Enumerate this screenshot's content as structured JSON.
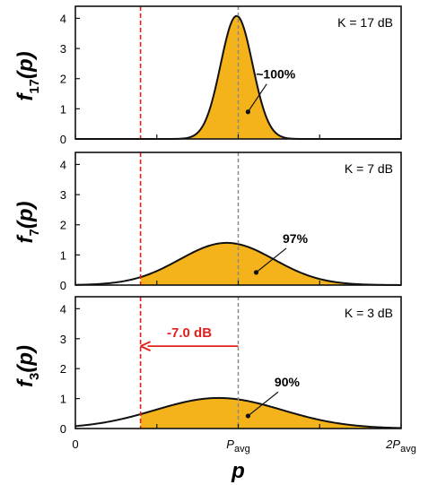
{
  "chart_data": {
    "type": "area",
    "x_axis": {
      "label": "p",
      "range": [
        0,
        2
      ],
      "ticks": [
        {
          "value": 0,
          "main": "0",
          "sub": ""
        },
        {
          "value": 1,
          "main": "P",
          "sub": "avg"
        },
        {
          "value": 2,
          "main": "2P",
          "sub": "avg"
        }
      ],
      "minor_ticks": [
        0.5,
        1.5
      ]
    },
    "y_axis": {
      "range": [
        0,
        4.4
      ],
      "ticks": [
        0,
        1,
        2,
        3,
        4
      ]
    },
    "threshold_line": {
      "x": 0.4,
      "color": "#e0201c"
    },
    "mean_line": {
      "x": 1.0,
      "color": "#888888"
    },
    "colors": {
      "fill": "#f5b31b",
      "curve": "#111111",
      "annotation": "#e0201c"
    },
    "panels": [
      {
        "ylabel_main": "f",
        "ylabel_sub": "17",
        "ylabel_tail": "(p)",
        "k_label": "K = 17 dB",
        "percentage_label": "~100%",
        "curve": {
          "peak_x": 0.99,
          "peak_y": 4.08,
          "sigma": 0.098
        },
        "shade_from_x": 0.4
      },
      {
        "ylabel_main": "f",
        "ylabel_sub": "7",
        "ylabel_tail": "(p)",
        "k_label": "K = 7 dB",
        "percentage_label": "97%",
        "curve": {
          "peak_x": 0.93,
          "peak_y": 1.4,
          "sigma": 0.29
        },
        "shade_from_x": 0.4
      },
      {
        "ylabel_main": "f",
        "ylabel_sub": "3",
        "ylabel_tail": "(p)",
        "k_label": "K = 3 dB",
        "percentage_label": "90%",
        "curve": {
          "peak_x": 0.88,
          "peak_y": 1.02,
          "sigma": 0.39
        },
        "shade_from_x": 0.4,
        "annotation": {
          "text": "-7.0 dB",
          "from_x": 1.0,
          "to_x": 0.4,
          "y": 2.75
        }
      }
    ]
  }
}
